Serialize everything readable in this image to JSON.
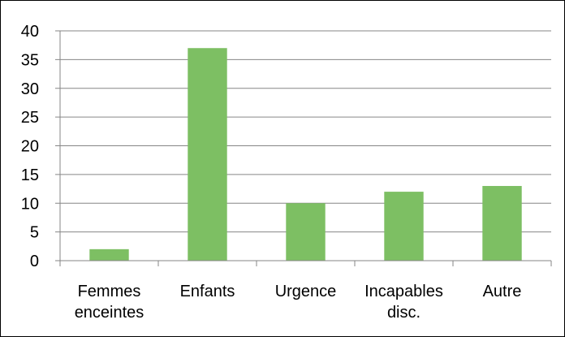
{
  "chart_data": {
    "type": "bar",
    "categories": [
      [
        "Femmes",
        "enceintes"
      ],
      [
        "Enfants"
      ],
      [
        "Urgence"
      ],
      [
        "Incapables",
        "disc."
      ],
      [
        "Autre"
      ]
    ],
    "values": [
      2,
      37,
      10,
      12,
      13
    ],
    "ylim": [
      0,
      40
    ],
    "yticks": [
      0,
      5,
      10,
      15,
      20,
      25,
      30,
      35,
      40
    ],
    "title": "",
    "xlabel": "",
    "ylabel": "",
    "grid": true,
    "legend": "none",
    "colors": {
      "bar": "#7dbf63",
      "grid": "#868686",
      "axis": "#868686",
      "text": "#000000",
      "border": "#000000"
    }
  }
}
